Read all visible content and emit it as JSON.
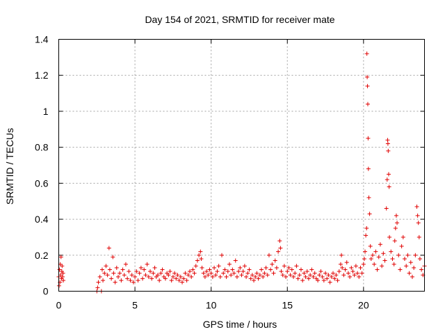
{
  "chart_data": {
    "type": "scatter",
    "title": "Day 154 of 2021, SRMTID for receiver mate",
    "xlabel": "GPS time / hours",
    "ylabel": "SRMTID / TECUs",
    "xlim": [
      0,
      24
    ],
    "ylim": [
      0,
      1.4
    ],
    "x_ticks": [
      0,
      5,
      10,
      15,
      20
    ],
    "y_ticks": [
      0,
      0.2,
      0.4,
      0.6,
      0.8,
      1,
      1.2,
      1.4
    ],
    "x_tick_labels": [
      "0",
      "5",
      "10",
      "15",
      "20"
    ],
    "y_tick_labels": [
      "0",
      "0.2",
      "0.4",
      "0.6",
      "0.8",
      "1",
      "1.2",
      "1.4"
    ],
    "grid": true,
    "marker": "+",
    "series_color": "#e00000",
    "series": [
      {
        "name": "SRMTID",
        "points": [
          [
            0.0,
            0.08
          ],
          [
            0.05,
            0.12
          ],
          [
            0.08,
            0.05
          ],
          [
            0.1,
            0.15
          ],
          [
            0.12,
            0.09
          ],
          [
            0.15,
            0.19
          ],
          [
            0.18,
            0.07
          ],
          [
            0.2,
            0.11
          ],
          [
            0.22,
            0.14
          ],
          [
            0.25,
            0.08
          ],
          [
            0.28,
            0.1
          ],
          [
            0.3,
            0.06
          ],
          [
            0.02,
            0.03
          ],
          [
            2.5,
            0.0
          ],
          [
            2.55,
            0.02
          ],
          [
            2.6,
            0.05
          ],
          [
            2.7,
            0.08
          ],
          [
            2.8,
            0.0
          ],
          [
            2.85,
            0.12
          ],
          [
            2.9,
            0.06
          ],
          [
            3.0,
            0.1
          ],
          [
            3.1,
            0.14
          ],
          [
            3.2,
            0.09
          ],
          [
            3.3,
            0.24
          ],
          [
            3.35,
            0.12
          ],
          [
            3.45,
            0.07
          ],
          [
            3.55,
            0.19
          ],
          [
            3.6,
            0.1
          ],
          [
            3.7,
            0.05
          ],
          [
            3.8,
            0.13
          ],
          [
            3.9,
            0.08
          ],
          [
            4.0,
            0.1
          ],
          [
            4.1,
            0.06
          ],
          [
            4.2,
            0.12
          ],
          [
            4.3,
            0.09
          ],
          [
            4.4,
            0.15
          ],
          [
            4.5,
            0.07
          ],
          [
            4.6,
            0.11
          ],
          [
            4.7,
            0.06
          ],
          [
            4.8,
            0.09
          ],
          [
            4.9,
            0.05
          ],
          [
            5.0,
            0.08
          ],
          [
            5.1,
            0.11
          ],
          [
            5.2,
            0.06
          ],
          [
            5.3,
            0.1
          ],
          [
            5.4,
            0.13
          ],
          [
            5.5,
            0.07
          ],
          [
            5.6,
            0.12
          ],
          [
            5.7,
            0.09
          ],
          [
            5.8,
            0.15
          ],
          [
            5.9,
            0.08
          ],
          [
            6.0,
            0.11
          ],
          [
            6.1,
            0.07
          ],
          [
            6.2,
            0.1
          ],
          [
            6.3,
            0.13
          ],
          [
            6.4,
            0.08
          ],
          [
            6.5,
            0.09
          ],
          [
            6.6,
            0.06
          ],
          [
            6.7,
            0.1
          ],
          [
            6.8,
            0.12
          ],
          [
            6.9,
            0.08
          ],
          [
            7.0,
            0.07
          ],
          [
            7.1,
            0.1
          ],
          [
            7.2,
            0.09
          ],
          [
            7.3,
            0.11
          ],
          [
            7.4,
            0.06
          ],
          [
            7.5,
            0.08
          ],
          [
            7.6,
            0.1
          ],
          [
            7.7,
            0.07
          ],
          [
            7.8,
            0.09
          ],
          [
            7.9,
            0.06
          ],
          [
            8.0,
            0.08
          ],
          [
            8.1,
            0.05
          ],
          [
            8.2,
            0.07
          ],
          [
            8.3,
            0.1
          ],
          [
            8.4,
            0.06
          ],
          [
            8.5,
            0.09
          ],
          [
            8.6,
            0.11
          ],
          [
            8.7,
            0.08
          ],
          [
            8.8,
            0.12
          ],
          [
            8.9,
            0.1
          ],
          [
            9.0,
            0.14
          ],
          [
            9.1,
            0.17
          ],
          [
            9.2,
            0.2
          ],
          [
            9.3,
            0.22
          ],
          [
            9.35,
            0.18
          ],
          [
            9.4,
            0.13
          ],
          [
            9.5,
            0.1
          ],
          [
            9.6,
            0.08
          ],
          [
            9.7,
            0.11
          ],
          [
            9.8,
            0.09
          ],
          [
            9.9,
            0.12
          ],
          [
            10.0,
            0.1
          ],
          [
            10.1,
            0.08
          ],
          [
            10.2,
            0.13
          ],
          [
            10.3,
            0.09
          ],
          [
            10.4,
            0.11
          ],
          [
            10.5,
            0.14
          ],
          [
            10.6,
            0.08
          ],
          [
            10.7,
            0.2
          ],
          [
            10.8,
            0.1
          ],
          [
            10.9,
            0.12
          ],
          [
            11.0,
            0.08
          ],
          [
            11.1,
            0.11
          ],
          [
            11.2,
            0.15
          ],
          [
            11.3,
            0.09
          ],
          [
            11.4,
            0.12
          ],
          [
            11.5,
            0.1
          ],
          [
            11.6,
            0.17
          ],
          [
            11.7,
            0.08
          ],
          [
            11.8,
            0.11
          ],
          [
            11.9,
            0.13
          ],
          [
            12.0,
            0.09
          ],
          [
            12.1,
            0.11
          ],
          [
            12.2,
            0.14
          ],
          [
            12.3,
            0.08
          ],
          [
            12.4,
            0.1
          ],
          [
            12.5,
            0.12
          ],
          [
            12.6,
            0.07
          ],
          [
            12.7,
            0.09
          ],
          [
            12.8,
            0.06
          ],
          [
            12.9,
            0.08
          ],
          [
            13.0,
            0.1
          ],
          [
            13.1,
            0.07
          ],
          [
            13.2,
            0.09
          ],
          [
            13.3,
            0.12
          ],
          [
            13.4,
            0.08
          ],
          [
            13.5,
            0.1
          ],
          [
            13.6,
            0.13
          ],
          [
            13.7,
            0.09
          ],
          [
            13.8,
            0.2
          ],
          [
            13.9,
            0.12
          ],
          [
            14.0,
            0.15
          ],
          [
            14.1,
            0.1
          ],
          [
            14.2,
            0.17
          ],
          [
            14.3,
            0.13
          ],
          [
            14.4,
            0.22
          ],
          [
            14.5,
            0.28
          ],
          [
            14.55,
            0.24
          ],
          [
            14.6,
            0.11
          ],
          [
            14.7,
            0.09
          ],
          [
            14.8,
            0.14
          ],
          [
            14.9,
            0.08
          ],
          [
            15.0,
            0.11
          ],
          [
            15.1,
            0.13
          ],
          [
            15.2,
            0.09
          ],
          [
            15.3,
            0.12
          ],
          [
            15.4,
            0.08
          ],
          [
            15.5,
            0.1
          ],
          [
            15.6,
            0.14
          ],
          [
            15.7,
            0.07
          ],
          [
            15.8,
            0.09
          ],
          [
            15.9,
            0.12
          ],
          [
            16.0,
            0.06
          ],
          [
            16.1,
            0.1
          ],
          [
            16.2,
            0.08
          ],
          [
            16.3,
            0.11
          ],
          [
            16.4,
            0.07
          ],
          [
            16.5,
            0.09
          ],
          [
            16.6,
            0.12
          ],
          [
            16.7,
            0.08
          ],
          [
            16.8,
            0.1
          ],
          [
            16.9,
            0.07
          ],
          [
            17.0,
            0.06
          ],
          [
            17.1,
            0.09
          ],
          [
            17.2,
            0.11
          ],
          [
            17.3,
            0.08
          ],
          [
            17.4,
            0.06
          ],
          [
            17.5,
            0.1
          ],
          [
            17.6,
            0.07
          ],
          [
            17.7,
            0.09
          ],
          [
            17.8,
            0.05
          ],
          [
            17.9,
            0.08
          ],
          [
            18.0,
            0.1
          ],
          [
            18.1,
            0.07
          ],
          [
            18.2,
            0.09
          ],
          [
            18.3,
            0.06
          ],
          [
            18.4,
            0.11
          ],
          [
            18.5,
            0.15
          ],
          [
            18.55,
            0.2
          ],
          [
            18.6,
            0.13
          ],
          [
            18.7,
            0.09
          ],
          [
            18.8,
            0.12
          ],
          [
            18.9,
            0.16
          ],
          [
            19.0,
            0.1
          ],
          [
            19.1,
            0.08
          ],
          [
            19.2,
            0.13
          ],
          [
            19.3,
            0.11
          ],
          [
            19.4,
            0.09
          ],
          [
            19.5,
            0.14
          ],
          [
            19.6,
            0.1
          ],
          [
            19.7,
            0.08
          ],
          [
            19.8,
            0.13
          ],
          [
            19.9,
            0.1
          ],
          [
            20.0,
            0.15
          ],
          [
            20.05,
            0.18
          ],
          [
            20.1,
            0.22
          ],
          [
            20.15,
            0.31
          ],
          [
            20.2,
            0.35
          ],
          [
            20.22,
            1.32
          ],
          [
            20.24,
            1.19
          ],
          [
            20.26,
            1.14
          ],
          [
            20.28,
            1.04
          ],
          [
            20.3,
            0.85
          ],
          [
            20.32,
            0.68
          ],
          [
            20.35,
            0.52
          ],
          [
            20.4,
            0.43
          ],
          [
            20.45,
            0.25
          ],
          [
            20.5,
            0.18
          ],
          [
            20.6,
            0.2
          ],
          [
            20.7,
            0.15
          ],
          [
            20.8,
            0.22
          ],
          [
            20.9,
            0.12
          ],
          [
            21.0,
            0.19
          ],
          [
            21.1,
            0.26
          ],
          [
            21.2,
            0.14
          ],
          [
            21.3,
            0.21
          ],
          [
            21.4,
            0.17
          ],
          [
            21.5,
            0.46
          ],
          [
            21.55,
            0.62
          ],
          [
            21.58,
            0.84
          ],
          [
            21.6,
            0.82
          ],
          [
            21.62,
            0.78
          ],
          [
            21.65,
            0.65
          ],
          [
            21.68,
            0.58
          ],
          [
            21.7,
            0.3
          ],
          [
            21.8,
            0.22
          ],
          [
            21.9,
            0.18
          ],
          [
            22.0,
            0.15
          ],
          [
            22.05,
            0.28
          ],
          [
            22.1,
            0.35
          ],
          [
            22.15,
            0.42
          ],
          [
            22.2,
            0.38
          ],
          [
            22.3,
            0.2
          ],
          [
            22.4,
            0.12
          ],
          [
            22.5,
            0.25
          ],
          [
            22.6,
            0.3
          ],
          [
            22.7,
            0.18
          ],
          [
            22.8,
            0.14
          ],
          [
            22.9,
            0.2
          ],
          [
            23.0,
            0.1
          ],
          [
            23.1,
            0.16
          ],
          [
            23.2,
            0.08
          ],
          [
            23.3,
            0.13
          ],
          [
            23.4,
            0.2
          ],
          [
            23.5,
            0.47
          ],
          [
            23.55,
            0.42
          ],
          [
            23.6,
            0.38
          ],
          [
            23.65,
            0.3
          ],
          [
            23.7,
            0.18
          ],
          [
            23.8,
            0.12
          ],
          [
            23.9,
            0.09
          ],
          [
            24.0,
            0.14
          ]
        ]
      }
    ]
  }
}
